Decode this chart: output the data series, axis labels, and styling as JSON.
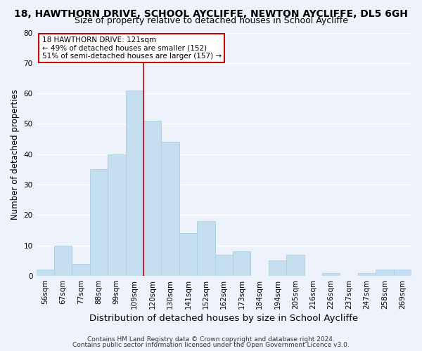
{
  "title": "18, HAWTHORN DRIVE, SCHOOL AYCLIFFE, NEWTON AYCLIFFE, DL5 6GH",
  "subtitle": "Size of property relative to detached houses in School Aycliffe",
  "xlabel": "Distribution of detached houses by size in School Aycliffe",
  "ylabel": "Number of detached properties",
  "bar_color": "#c5dff0",
  "bar_edge_color": "#a8cfe0",
  "bin_labels": [
    "56sqm",
    "67sqm",
    "77sqm",
    "88sqm",
    "99sqm",
    "109sqm",
    "120sqm",
    "130sqm",
    "141sqm",
    "152sqm",
    "162sqm",
    "173sqm",
    "184sqm",
    "194sqm",
    "205sqm",
    "216sqm",
    "226sqm",
    "237sqm",
    "247sqm",
    "258sqm",
    "269sqm"
  ],
  "bar_heights": [
    2,
    10,
    4,
    35,
    40,
    61,
    51,
    44,
    14,
    18,
    7,
    8,
    0,
    5,
    7,
    0,
    1,
    0,
    1,
    2,
    2
  ],
  "ylim": [
    0,
    80
  ],
  "yticks": [
    0,
    10,
    20,
    30,
    40,
    50,
    60,
    70,
    80
  ],
  "annotation_title": "18 HAWTHORN DRIVE: 121sqm",
  "annotation_line1": "← 49% of detached houses are smaller (152)",
  "annotation_line2": "51% of semi-detached houses are larger (157) →",
  "vline_x_index": 6,
  "footnote1": "Contains HM Land Registry data © Crown copyright and database right 2024.",
  "footnote2": "Contains public sector information licensed under the Open Government Licence v3.0.",
  "background_color": "#eef2fa",
  "annotation_box_color": "#ffffff",
  "annotation_border_color": "#cc0000",
  "grid_color": "#ffffff",
  "title_fontsize": 10,
  "subtitle_fontsize": 9,
  "xlabel_fontsize": 9.5,
  "ylabel_fontsize": 8.5,
  "tick_fontsize": 7.5,
  "footnote_fontsize": 6.5
}
